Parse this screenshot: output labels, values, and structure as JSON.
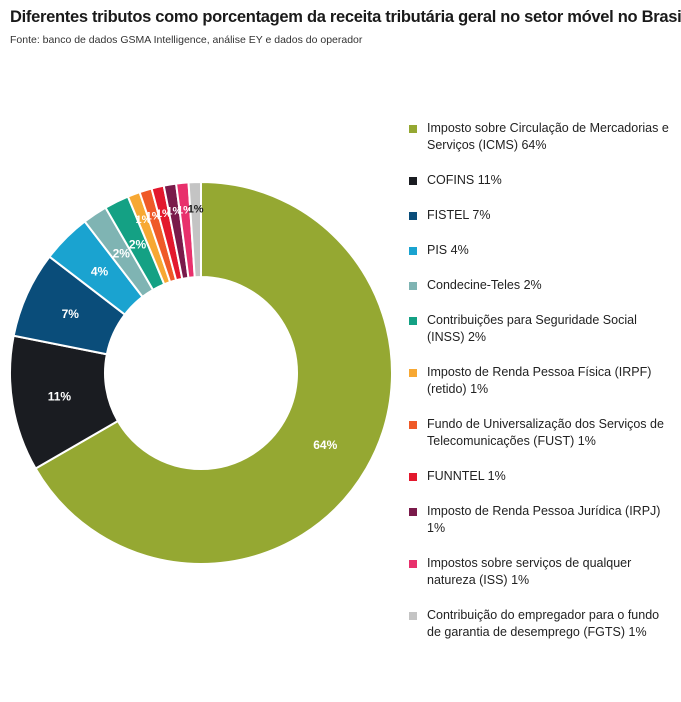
{
  "header": {
    "title": "Diferentes tributos como porcentagem da receita tributária geral no setor móvel no Brasil",
    "source": "Fonte: banco de dados GSMA Intelligence, análise EY e dados do operador"
  },
  "chart_data": {
    "type": "pie",
    "variant": "donut",
    "legend_position": "right",
    "slices": [
      {
        "name": "Imposto sobre Circulação de Mercadorias e Serviços (ICMS) 64%",
        "value": 64,
        "label": "64%",
        "color": "#95a832",
        "label_color": "#ffffff"
      },
      {
        "name": "COFINS 11%",
        "value": 11,
        "label": "11%",
        "color": "#1a1c21",
        "label_color": "#ffffff"
      },
      {
        "name": "FISTEL 7%",
        "value": 7,
        "label": "7%",
        "color": "#0a4d7a",
        "label_color": "#ffffff"
      },
      {
        "name": "PIS 4%",
        "value": 4,
        "label": "4%",
        "color": "#1aa3d0",
        "label_color": "#ffffff"
      },
      {
        "name": "Condecine-Teles 2%",
        "value": 2,
        "label": "2%",
        "color": "#7fb4b3",
        "label_color": "#ffffff"
      },
      {
        "name": "Contribuições para Seguridade Social (INSS) 2%",
        "value": 2,
        "label": "2%",
        "color": "#14a184",
        "label_color": "#ffffff"
      },
      {
        "name": "Imposto de Renda Pessoa Física (IRPF) (retido) 1%",
        "value": 1,
        "label": "1%",
        "color": "#f7a833",
        "label_color": "#ffffff"
      },
      {
        "name": "Fundo de Universalização dos Serviços de Telecomunicações (FUST) 1%",
        "value": 1,
        "label": "1%",
        "color": "#ef5a28",
        "label_color": "#ffffff"
      },
      {
        "name": "FUNNTEL 1%",
        "value": 1,
        "label": "1%",
        "color": "#e3182d",
        "label_color": "#ffffff"
      },
      {
        "name": "Imposto de Renda Pessoa Jurídica (IRPJ) 1%",
        "value": 1,
        "label": "1%",
        "color": "#7a1a4a",
        "label_color": "#ffffff"
      },
      {
        "name": "Impostos sobre serviços de qualquer natureza (ISS) 1%",
        "value": 1,
        "label": "1%",
        "color": "#e8306c",
        "label_color": "#ffffff"
      },
      {
        "name": "Contribuição do empregador para o fundo de garantia de desemprego (FGTS) 1%",
        "value": 1,
        "label": "1%",
        "color": "#c4c4c4",
        "label_color": "#1a1a1a"
      }
    ]
  }
}
